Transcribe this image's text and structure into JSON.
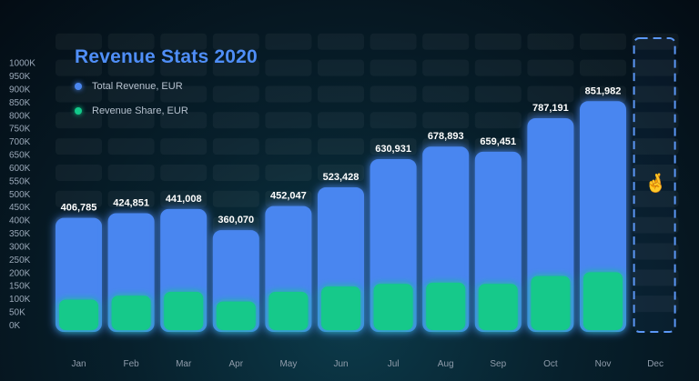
{
  "chart_data": {
    "type": "bar",
    "title": "Revenue Stats 2020",
    "categories": [
      "Jan",
      "Feb",
      "Mar",
      "Apr",
      "May",
      "Jun",
      "Jul",
      "Aug",
      "Sep",
      "Oct",
      "Nov",
      "Dec"
    ],
    "series": [
      {
        "name": "Total Revenue, EUR",
        "values": [
          406785,
          424851,
          441008,
          360070,
          452047,
          523428,
          630931,
          678893,
          659451,
          787191,
          851982,
          null
        ],
        "color": "#4a86f0"
      },
      {
        "name": "Revenue Share, EUR",
        "values": [
          95000,
          110000,
          125000,
          88000,
          125000,
          145000,
          155000,
          160000,
          155000,
          185000,
          200000,
          null
        ],
        "color": "#12c98a"
      }
    ],
    "data_labels": [
      "406,785",
      "424,851",
      "441,008",
      "360,070",
      "452,047",
      "523,428",
      "630,931",
      "678,893",
      "659,451",
      "787,191",
      "851,982",
      ""
    ],
    "yticks": [
      "0K",
      "50K",
      "100K",
      "150K",
      "200K",
      "250K",
      "300K",
      "350K",
      "400K",
      "450K",
      "500K",
      "550K",
      "600K",
      "650K",
      "700K",
      "750K",
      "800K",
      "850K",
      "900K",
      "950K",
      "1000K"
    ],
    "ylim": [
      0,
      1000000
    ],
    "xlabel": "",
    "ylabel": "",
    "legend_position": "top-left",
    "grid": "rounded cell background",
    "highlight": {
      "category": "Dec",
      "style": "dashed outline",
      "icon": "crossed-fingers-emoji",
      "glyph": "🤞"
    }
  }
}
